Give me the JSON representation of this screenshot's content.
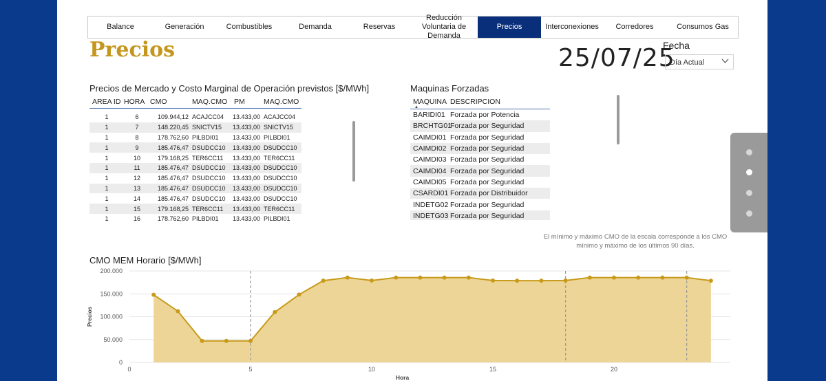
{
  "nav": {
    "tabs": [
      {
        "label": "Balance",
        "active": false
      },
      {
        "label": "Generación",
        "active": false
      },
      {
        "label": "Combustibles",
        "active": false
      },
      {
        "label": "Demanda",
        "active": false
      },
      {
        "label": "Reservas",
        "active": false
      },
      {
        "label": "Reducción Voluntaria de Demanda",
        "active": false
      },
      {
        "label": "Precios",
        "active": true
      },
      {
        "label": "Interconexiones",
        "active": false
      },
      {
        "label": "Corredores",
        "active": false
      },
      {
        "label": "Consumos Gas",
        "active": false
      }
    ]
  },
  "page": {
    "title": "Precios",
    "date": "25/07/25"
  },
  "fecha": {
    "label": "Fecha",
    "selected": "Día Actual",
    "chevron_icon": "chevron-down-icon"
  },
  "prices_table": {
    "title": "Precios de Mercado y Costo Marginal de Operación previstos [$/MWh]",
    "headers": [
      "AREA ID",
      "HORA",
      "CMO",
      "MAQ.CMO",
      "PM",
      "MAQ.CMO"
    ],
    "rows": [
      [
        "1",
        "6",
        "109.944,12",
        "ACAJCC04",
        "13.433,00",
        "ACAJCC04"
      ],
      [
        "1",
        "7",
        "148.220,45",
        "SNICTV15",
        "13.433,00",
        "SNICTV15"
      ],
      [
        "1",
        "8",
        "178.762,60",
        "PILBDI01",
        "13.433,00",
        "PILBDI01"
      ],
      [
        "1",
        "9",
        "185.476,47",
        "DSUDCC10",
        "13.433,00",
        "DSUDCC10"
      ],
      [
        "1",
        "10",
        "179.168,25",
        "TER6CC11",
        "13.433,00",
        "TER6CC11"
      ],
      [
        "1",
        "11",
        "185.476,47",
        "DSUDCC10",
        "13.433,00",
        "DSUDCC10"
      ],
      [
        "1",
        "12",
        "185.476,47",
        "DSUDCC10",
        "13.433,00",
        "DSUDCC10"
      ],
      [
        "1",
        "13",
        "185.476,47",
        "DSUDCC10",
        "13.433,00",
        "DSUDCC10"
      ],
      [
        "1",
        "14",
        "185.476,47",
        "DSUDCC10",
        "13.433,00",
        "DSUDCC10"
      ],
      [
        "1",
        "15",
        "179.168,25",
        "TER6CC11",
        "13.433,00",
        "TER6CC11"
      ],
      [
        "1",
        "16",
        "178.762,60",
        "PILBDI01",
        "13.433,00",
        "PILBDI01"
      ]
    ]
  },
  "maq_table": {
    "title": "Maquinas Forzadas",
    "headers": [
      "MAQUINA",
      "DESCRIPCION"
    ],
    "rows": [
      [
        "BARIDI01",
        "Forzada por Potencia"
      ],
      [
        "BRCHTG01",
        "Forzada por Seguridad"
      ],
      [
        "CAIMDI01",
        "Forzada por Seguridad"
      ],
      [
        "CAIMDI02",
        "Forzada por Seguridad"
      ],
      [
        "CAIMDI03",
        "Forzada por Seguridad"
      ],
      [
        "CAIMDI04",
        "Forzada por Seguridad"
      ],
      [
        "CAIMDI05",
        "Forzada por Seguridad"
      ],
      [
        "CSARDI01",
        "Forzada por Distribuidor"
      ],
      [
        "INDETG02",
        "Forzada por Seguridad"
      ],
      [
        "INDETG03",
        "Forzada por Seguridad"
      ]
    ]
  },
  "side_panel": {
    "dots": 4,
    "active_index": 1
  },
  "note": "El mínimo y máximo CMO de la escala corresponde a los CMO mínimo y máximo de los últimos 90 días.",
  "chart_data": {
    "type": "area",
    "title": "CMO MEM Horario [$/MWh]",
    "xlabel": "Hora",
    "ylabel": "Precios",
    "x": [
      1,
      2,
      3,
      4,
      5,
      6,
      7,
      8,
      9,
      10,
      11,
      12,
      13,
      14,
      15,
      16,
      17,
      18,
      19,
      20,
      21,
      22,
      23,
      24
    ],
    "values": [
      148000,
      112000,
      47000,
      47000,
      47000,
      109944,
      148220,
      178763,
      185476,
      179168,
      185476,
      185476,
      185476,
      185476,
      179168,
      178763,
      178763,
      179168,
      185476,
      185476,
      185476,
      185476,
      185476,
      178763
    ],
    "xlim": [
      0,
      24.8
    ],
    "ylim": [
      0,
      200000
    ],
    "xticks": [
      "0",
      "5",
      "10",
      "15",
      "20"
    ],
    "yticks": [
      "0",
      "50.000",
      "100.000",
      "150.000",
      "200.000"
    ],
    "reference_lines_x": [
      5,
      18,
      23
    ],
    "line_color": "#c89a1a",
    "fill_color": "#ecd596",
    "grid": true
  }
}
